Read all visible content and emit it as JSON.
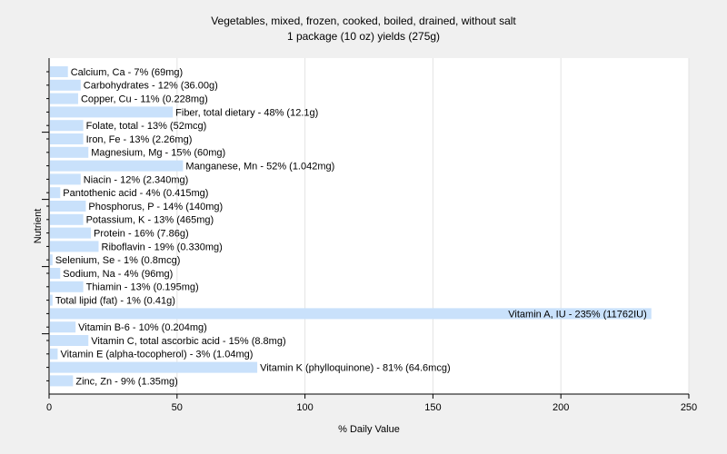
{
  "chart_data": {
    "type": "bar",
    "orientation": "horizontal",
    "title": "Vegetables, mixed, frozen, cooked, boiled, drained, without salt",
    "subtitle": "1 package (10 oz) yields (275g)",
    "xlabel": "% Daily Value",
    "ylabel": "Nutrient",
    "xlim": [
      0,
      250
    ],
    "xticks": [
      0,
      50,
      100,
      150,
      200,
      250
    ],
    "grid": true,
    "bar_color": "#c9e1fb",
    "categories": [
      "Calcium, Ca",
      "Carbohydrates",
      "Copper, Cu",
      "Fiber, total dietary",
      "Folate, total",
      "Iron, Fe",
      "Magnesium, Mg",
      "Manganese, Mn",
      "Niacin",
      "Pantothenic acid",
      "Phosphorus, P",
      "Potassium, K",
      "Protein",
      "Riboflavin",
      "Selenium, Se",
      "Sodium, Na",
      "Thiamin",
      "Total lipid (fat)",
      "Vitamin A, IU",
      "Vitamin B-6",
      "Vitamin C, total ascorbic acid",
      "Vitamin E (alpha-tocopherol)",
      "Vitamin K (phylloquinone)",
      "Zinc, Zn"
    ],
    "values": [
      7,
      12,
      11,
      48,
      13,
      13,
      15,
      52,
      12,
      4,
      14,
      13,
      16,
      19,
      1,
      4,
      13,
      1,
      235,
      10,
      15,
      3,
      81,
      9
    ],
    "labels": [
      "Calcium, Ca - 7% (69mg)",
      "Carbohydrates - 12% (36.00g)",
      "Copper, Cu - 11% (0.228mg)",
      "Fiber, total dietary - 48% (12.1g)",
      "Folate, total - 13% (52mcg)",
      "Iron, Fe - 13% (2.26mg)",
      "Magnesium, Mg - 15% (60mg)",
      "Manganese, Mn - 52% (1.042mg)",
      "Niacin - 12% (2.340mg)",
      "Pantothenic acid - 4% (0.415mg)",
      "Phosphorus, P - 14% (140mg)",
      "Potassium, K - 13% (465mg)",
      "Protein - 16% (7.86g)",
      "Riboflavin - 19% (0.330mg)",
      "Selenium, Se - 1% (0.8mcg)",
      "Sodium, Na - 4% (96mg)",
      "Thiamin - 13% (0.195mg)",
      "Total lipid (fat) - 1% (0.41g)",
      "Vitamin A, IU - 235% (11762IU)",
      "Vitamin B-6 - 10% (0.204mg)",
      "Vitamin C, total ascorbic acid - 15% (8.8mg)",
      "Vitamin E (alpha-tocopherol) - 3% (1.04mg)",
      "Vitamin K (phylloquinone) - 81% (64.6mcg)",
      "Zinc, Zn - 9% (1.35mg)"
    ]
  }
}
